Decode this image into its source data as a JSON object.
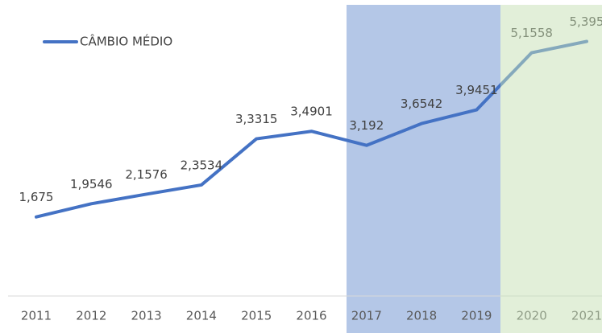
{
  "chart_data": {
    "type": "line",
    "categories": [
      "2011",
      "2012",
      "2013",
      "2014",
      "2015",
      "2016",
      "2017",
      "2018",
      "2019",
      "2020",
      "2021"
    ],
    "series": [
      {
        "name": "CÂMBIO MÉDIO",
        "color": "#4472c4",
        "values": [
          1.675,
          1.9546,
          2.1576,
          2.3534,
          3.3315,
          3.4901,
          3.192,
          3.6542,
          3.9451,
          5.1558,
          5.395
        ],
        "value_labels": [
          "1,675",
          "1,9546",
          "2,1576",
          "2,3534",
          "3,3315",
          "3,4901",
          "3,192",
          "3,6542",
          "3,9451",
          "5,1558",
          "5,395"
        ]
      }
    ],
    "ylim": [
      0,
      6
    ],
    "legend": "top-left"
  }
}
